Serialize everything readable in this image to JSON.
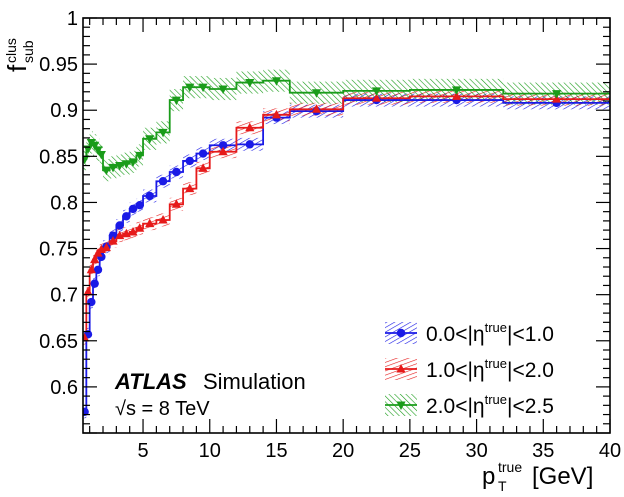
{
  "chart_data": {
    "type": "line",
    "step": true,
    "ylabel_main": "f",
    "ylabel_sup": "clus",
    "ylabel_sub": "sub",
    "xlabel_main": "p",
    "xlabel_sup": "true",
    "xlabel_sub": "T",
    "xlabel_unit": "[GeV]",
    "xlim": [
      0.5,
      40
    ],
    "ylim": [
      0.55,
      1.0
    ],
    "xticks": [
      "5",
      "10",
      "15",
      "20",
      "25",
      "30",
      "35",
      "40"
    ],
    "yticks": [
      "0.6",
      "0.65",
      "0.7",
      "0.75",
      "0.8",
      "0.85",
      "0.9",
      "0.95",
      "1"
    ],
    "label_atlas": "ATLAS",
    "label_sim": "Simulation",
    "label_energy": "√s = 8 TeV",
    "series": [
      {
        "name": "0.0<|η^true|<1.0",
        "name_prefix": "0.0<|η",
        "name_sup": "true",
        "name_suffix": "|<1.0",
        "color": "#1a1ae6",
        "marker": "circle",
        "bins": [
          0.5,
          0.75,
          1.0,
          1.25,
          1.5,
          1.75,
          2.0,
          2.5,
          3.0,
          3.5,
          4.0,
          4.5,
          5.0,
          6.0,
          7.0,
          8.0,
          9.0,
          10.0,
          12.0,
          14.0,
          16.0,
          20.0,
          25.0,
          32.0,
          40.0
        ],
        "values": [
          0.573,
          0.657,
          0.692,
          0.712,
          0.727,
          0.741,
          0.752,
          0.764,
          0.775,
          0.785,
          0.793,
          0.797,
          0.807,
          0.823,
          0.833,
          0.845,
          0.853,
          0.862,
          0.863,
          0.892,
          0.899,
          0.911,
          0.911,
          0.908
        ],
        "band": 0.007
      },
      {
        "name": "1.0<|η^true|<2.0",
        "name_prefix": "1.0<|η",
        "name_sup": "true",
        "name_suffix": "|<2.0",
        "color": "#e61a1a",
        "marker": "triangle",
        "bins": [
          0.5,
          0.75,
          1.0,
          1.25,
          1.5,
          1.75,
          2.0,
          2.5,
          3.0,
          3.5,
          4.0,
          4.5,
          5.0,
          6.0,
          7.0,
          8.0,
          9.0,
          10.0,
          12.0,
          14.0,
          16.0,
          20.0,
          25.0,
          32.0,
          40.0
        ],
        "values": [
          0.653,
          0.703,
          0.727,
          0.738,
          0.745,
          0.749,
          0.751,
          0.758,
          0.764,
          0.766,
          0.768,
          0.772,
          0.777,
          0.781,
          0.798,
          0.815,
          0.837,
          0.855,
          0.881,
          0.895,
          0.901,
          0.913,
          0.915,
          0.912
        ],
        "band": 0.007
      },
      {
        "name": "2.0<|η^true|<2.5",
        "name_prefix": "2.0<|η",
        "name_sup": "true",
        "name_suffix": "|<2.5",
        "color": "#1a9c1a",
        "marker": "triangle-down",
        "bins": [
          0.5,
          0.75,
          1.0,
          1.25,
          1.5,
          1.75,
          2.0,
          2.5,
          3.0,
          3.5,
          4.0,
          4.5,
          5.0,
          6.0,
          7.0,
          8.0,
          9.0,
          10.0,
          12.0,
          14.0,
          16.0,
          20.0,
          25.0,
          32.0,
          40.0
        ],
        "values": [
          0.847,
          0.858,
          0.865,
          0.862,
          0.857,
          0.852,
          0.835,
          0.838,
          0.84,
          0.842,
          0.844,
          0.851,
          0.869,
          0.876,
          0.911,
          0.925,
          0.925,
          0.923,
          0.93,
          0.932,
          0.919,
          0.921,
          0.922,
          0.918
        ],
        "band": 0.012
      }
    ]
  }
}
